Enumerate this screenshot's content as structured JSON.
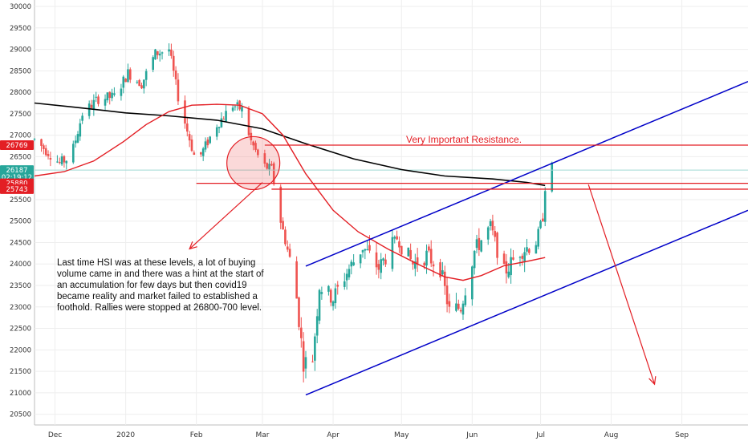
{
  "chart_data": {
    "type": "candlestick",
    "title": "",
    "xlabel": "",
    "ylabel": "",
    "ylim": [
      20250,
      30150
    ],
    "y_ticks": [
      20500,
      21000,
      21500,
      22000,
      22500,
      23000,
      23500,
      24000,
      24500,
      25000,
      25500,
      26000,
      26500,
      27000,
      27500,
      28000,
      28500,
      29000,
      29500,
      30000
    ],
    "x_ticks": [
      {
        "label": "Dec",
        "date": "2019-12-01"
      },
      {
        "label": "2020",
        "date": "2020-01-01"
      },
      {
        "label": "Feb",
        "date": "2020-02-01"
      },
      {
        "label": "Mar",
        "date": "2020-03-01"
      },
      {
        "label": "Apr",
        "date": "2020-04-01"
      },
      {
        "label": "May",
        "date": "2020-05-01"
      },
      {
        "label": "Jun",
        "date": "2020-06-01"
      },
      {
        "label": "Jul",
        "date": "2020-07-01"
      },
      {
        "label": "Aug",
        "date": "2020-08-01"
      },
      {
        "label": "Sep",
        "date": "2020-09-01"
      }
    ],
    "x_range": [
      "2019-11-22",
      "2020-09-30"
    ],
    "grid": true,
    "colors": {
      "up": "#26a69a",
      "down": "#ef5350",
      "ma_fast": "#e31e24",
      "ma_slow": "#000000",
      "channel": "#0000c8",
      "resistance": "#e31e24",
      "current_price": "#26a69a"
    },
    "price_tags": [
      {
        "label": "26769",
        "value": 26769,
        "color": "#e31e24"
      },
      {
        "label": "26187",
        "value": 26187,
        "color": "#26a69a"
      },
      {
        "label": "02:19:12",
        "value": 26020,
        "color": "#26a69a"
      },
      {
        "label": "25880",
        "value": 25880,
        "color": "#e31e24"
      },
      {
        "label": "25743",
        "value": 25743,
        "color": "#e31e24"
      }
    ],
    "annotations": {
      "resistance_label": "Very Important Resistance.",
      "note_lines": [
        "Last time HSI was at these levels, a lot of buying",
        "volume came in and there was a hint at the start of",
        "an accumulation for few days but then covid19",
        "became reality and market failed to established a",
        "foothold. Rallies were stopped at 26800-700 level."
      ]
    },
    "horizontal_levels": [
      {
        "name": "resistance",
        "value": 26769,
        "from": "2020-03-02",
        "to": "2020-09-30"
      },
      {
        "name": "support-upper",
        "value": 25880,
        "from": "2020-02-01",
        "to": "2020-09-30"
      },
      {
        "name": "support-lower",
        "value": 25743,
        "from": "2020-03-05",
        "to": "2020-09-30"
      }
    ],
    "channel": {
      "upper": [
        {
          "date": "2020-03-20",
          "value": 23950
        },
        {
          "date": "2020-09-30",
          "value": 28250
        }
      ],
      "lower": [
        {
          "date": "2020-03-20",
          "value": 20950
        },
        {
          "date": "2020-09-30",
          "value": 25250
        }
      ]
    },
    "highlight_circle": {
      "date": "2020-02-26",
      "value": 26350
    },
    "arrows": [
      {
        "from": {
          "date": "2020-03-01",
          "value": 25900
        },
        "to": {
          "date": "2020-01-29",
          "value": 24350
        }
      },
      {
        "from": {
          "date": "2020-07-22",
          "value": 25850
        },
        "to": {
          "date": "2020-08-20",
          "value": 21200
        }
      }
    ],
    "ma_fast": [
      {
        "date": "2019-11-22",
        "value": 26050
      },
      {
        "date": "2019-12-05",
        "value": 26150
      },
      {
        "date": "2019-12-18",
        "value": 26400
      },
      {
        "date": "2019-12-31",
        "value": 26850
      },
      {
        "date": "2020-01-10",
        "value": 27250
      },
      {
        "date": "2020-01-20",
        "value": 27550
      },
      {
        "date": "2020-01-30",
        "value": 27700
      },
      {
        "date": "2020-02-10",
        "value": 27720
      },
      {
        "date": "2020-02-20",
        "value": 27700
      },
      {
        "date": "2020-03-01",
        "value": 27500
      },
      {
        "date": "2020-03-10",
        "value": 27000
      },
      {
        "date": "2020-03-20",
        "value": 26100
      },
      {
        "date": "2020-04-01",
        "value": 25250
      },
      {
        "date": "2020-04-12",
        "value": 24750
      },
      {
        "date": "2020-04-25",
        "value": 24350
      },
      {
        "date": "2020-05-08",
        "value": 24000
      },
      {
        "date": "2020-05-20",
        "value": 23700
      },
      {
        "date": "2020-05-28",
        "value": 23620
      },
      {
        "date": "2020-06-05",
        "value": 23730
      },
      {
        "date": "2020-06-15",
        "value": 23960
      },
      {
        "date": "2020-06-25",
        "value": 24060
      },
      {
        "date": "2020-07-03",
        "value": 24150
      }
    ],
    "ma_slow": [
      {
        "date": "2019-11-22",
        "value": 27750
      },
      {
        "date": "2019-12-10",
        "value": 27650
      },
      {
        "date": "2020-01-01",
        "value": 27520
      },
      {
        "date": "2020-01-20",
        "value": 27450
      },
      {
        "date": "2020-02-10",
        "value": 27350
      },
      {
        "date": "2020-03-01",
        "value": 27150
      },
      {
        "date": "2020-03-20",
        "value": 26800
      },
      {
        "date": "2020-04-10",
        "value": 26450
      },
      {
        "date": "2020-05-01",
        "value": 26200
      },
      {
        "date": "2020-05-20",
        "value": 26050
      },
      {
        "date": "2020-06-10",
        "value": 25980
      },
      {
        "date": "2020-06-25",
        "value": 25900
      },
      {
        "date": "2020-07-03",
        "value": 25830
      }
    ]
  }
}
